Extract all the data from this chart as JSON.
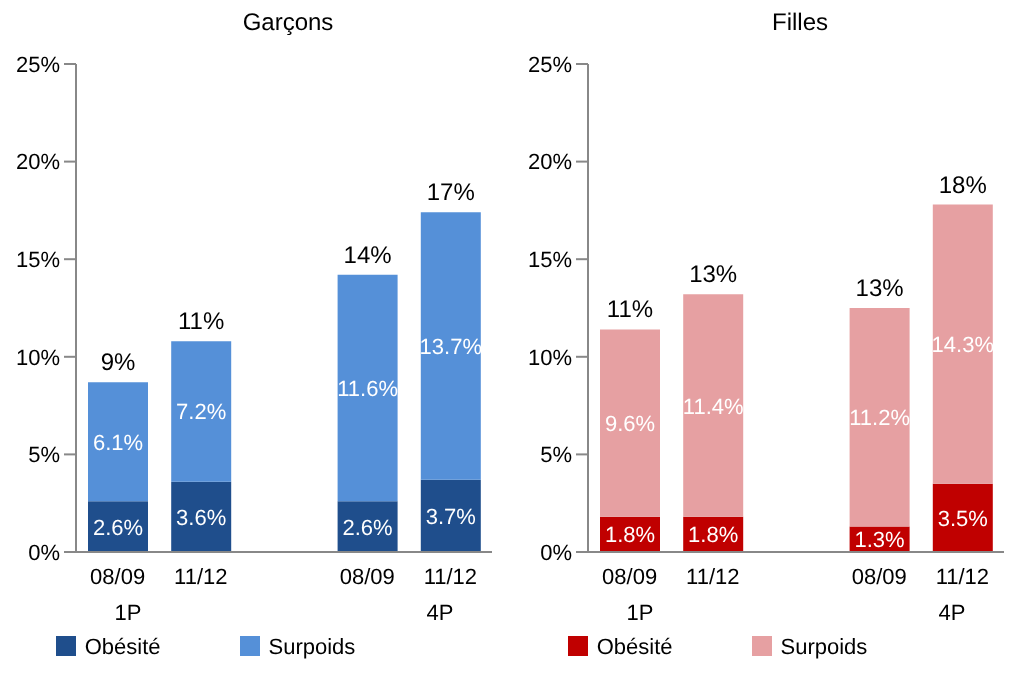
{
  "chart_data": [
    {
      "type": "bar",
      "title": "Garçons",
      "stacked": true,
      "categories": [
        "08/09",
        "11/12",
        null,
        "08/09",
        "11/12"
      ],
      "annotations": [
        "1P",
        "4P"
      ],
      "series": [
        {
          "name": "Obésité",
          "color": "#1f4e8c",
          "values": [
            2.6,
            3.6,
            null,
            2.6,
            3.7
          ],
          "value_labels": [
            "2.6%",
            "3.6%",
            null,
            "2.6%",
            "3.7%"
          ]
        },
        {
          "name": "Surpoids",
          "color": "#5590d8",
          "values": [
            6.1,
            7.2,
            null,
            11.6,
            13.7
          ],
          "value_labels": [
            "6.1%",
            "7.2%",
            null,
            "11.6%",
            "13.7%"
          ]
        }
      ],
      "totals": [
        "9%",
        "11%",
        null,
        "14%",
        "17%"
      ],
      "ylim": [
        0,
        25
      ],
      "yticks": [
        {
          "value": 0,
          "label": "0%"
        },
        {
          "value": 5,
          "label": "5%"
        },
        {
          "value": 10,
          "label": "10%"
        },
        {
          "value": 15,
          "label": "15%"
        },
        {
          "value": 20,
          "label": "20%"
        },
        {
          "value": 25,
          "label": "25%"
        }
      ],
      "legend": "bottom"
    },
    {
      "type": "bar",
      "title": "Filles",
      "stacked": true,
      "categories": [
        "08/09",
        "11/12",
        null,
        "08/09",
        "11/12"
      ],
      "annotations": [
        "1P",
        "4P"
      ],
      "series": [
        {
          "name": "Obésité",
          "color": "#c00000",
          "values": [
            1.8,
            1.8,
            null,
            1.3,
            3.5
          ],
          "value_labels": [
            "1.8%",
            "1.8%",
            null,
            "1.3%",
            "3.5%"
          ]
        },
        {
          "name": "Surpoids",
          "color": "#e6a0a2",
          "values": [
            9.6,
            11.4,
            null,
            11.2,
            14.3
          ],
          "value_labels": [
            "9.6%",
            "11.4%",
            null,
            "11.2%",
            "14.3%"
          ]
        }
      ],
      "totals": [
        "11%",
        "13%",
        null,
        "13%",
        "18%"
      ],
      "ylim": [
        0,
        25
      ],
      "yticks": [
        {
          "value": 0,
          "label": "0%"
        },
        {
          "value": 5,
          "label": "5%"
        },
        {
          "value": 10,
          "label": "10%"
        },
        {
          "value": 15,
          "label": "15%"
        },
        {
          "value": 20,
          "label": "20%"
        },
        {
          "value": 25,
          "label": "25%"
        }
      ],
      "legend": "bottom"
    }
  ]
}
